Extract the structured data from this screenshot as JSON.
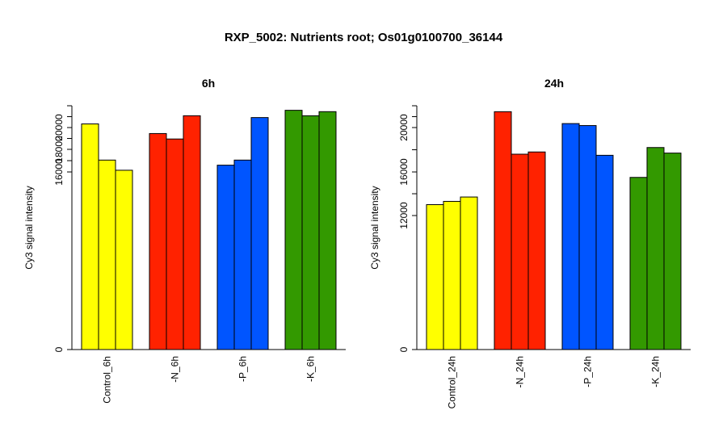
{
  "title": "RXP_5002: Nutrients root; Os01g0100700_36144",
  "colors": {
    "control": "#ffff00",
    "N": "#ff2200",
    "P": "#0055ff",
    "K": "#339900"
  },
  "chart_data": [
    {
      "type": "bar",
      "title": "6h",
      "ylabel": "Cy3 signal intensity",
      "ylim": [
        0,
        22400
      ],
      "y_axis_scale": "non-linear (compressed lower range)",
      "yticks": [
        0,
        16000,
        18000,
        20000
      ],
      "ytick_labels": [
        "0",
        "16000",
        "18000",
        "20000"
      ],
      "categories": [
        "Control_6h",
        "-N_6h",
        "-P_6h",
        "-K_6h"
      ],
      "bar_colors": [
        "#ffff00",
        "#ff2200",
        "#0055ff",
        "#339900"
      ],
      "values": [
        [
          20400,
          17050,
          16150
        ],
        [
          19450,
          18950,
          21300
        ],
        [
          16600,
          17050,
          21100
        ],
        [
          21900,
          21300,
          21750
        ]
      ]
    },
    {
      "type": "bar",
      "title": "24h",
      "ylabel": "Cy3 signal intensity",
      "ylim": [
        0,
        22200
      ],
      "y_axis_scale": "non-linear (compressed lower range)",
      "yticks": [
        0,
        12000,
        16000,
        20000
      ],
      "ytick_labels": [
        "0",
        "12000",
        "16000",
        "20000"
      ],
      "categories": [
        "Control_24h",
        "-N_24h",
        "-P_24h",
        "-K_24h"
      ],
      "bar_colors": [
        "#ffff00",
        "#ff2200",
        "#0055ff",
        "#339900"
      ],
      "values": [
        [
          13000,
          13300,
          13700
        ],
        [
          21600,
          17600,
          17800
        ],
        [
          20400,
          20200,
          17500
        ],
        [
          15500,
          18200,
          17700
        ]
      ]
    }
  ]
}
